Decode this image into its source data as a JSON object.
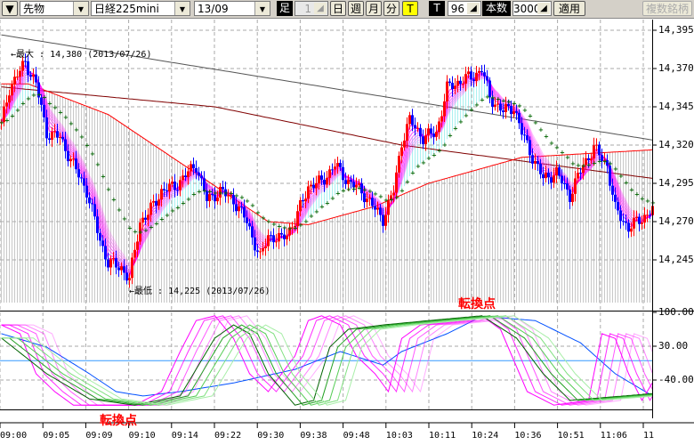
{
  "toolbar": {
    "menu_arrow": "▼",
    "market": "先物",
    "symbol": "日経225mini",
    "contract": "13/09",
    "ashi_label": "足",
    "ashi_value": "1",
    "buttons": [
      "日",
      "週",
      "月",
      "分"
    ],
    "t_toggle": "T",
    "t_label": "T",
    "t_value": "96",
    "count_label": "本数",
    "count_value": "3000",
    "apply": "適用",
    "multi": "複数銘柄"
  },
  "annotations": {
    "max": "←最大 : 14,380 (2013/07/26)",
    "min": "←最低 : 14,225 (2013/07/26)",
    "turn1": "転換点",
    "turn2": "転換点"
  },
  "chart_data": [
    {
      "type": "candlestick",
      "ylim": [
        14225,
        14402
      ],
      "yticks": [
        "14,395",
        "14,370",
        "14,345",
        "14,320",
        "14,295",
        "14,270",
        "14,245"
      ],
      "ytick_values": [
        14395,
        14370,
        14345,
        14320,
        14295,
        14270,
        14245
      ],
      "xticks": [
        "09:00",
        "09:05",
        "09:09",
        "09:10",
        "09:14",
        "09:22",
        "09:30",
        "09:38",
        "09:48",
        "10:03",
        "10:11",
        "10:24",
        "10:36",
        "10:51",
        "11:06",
        "11"
      ],
      "max": 14380,
      "min": 14225,
      "bars": 245,
      "price_path": [
        [
          0,
          14333
        ],
        [
          3,
          14357
        ],
        [
          9,
          14374
        ],
        [
          13,
          14360
        ],
        [
          17,
          14328
        ],
        [
          22,
          14325
        ],
        [
          27,
          14307
        ],
        [
          32,
          14290
        ],
        [
          37,
          14258
        ],
        [
          40,
          14243
        ],
        [
          45,
          14240
        ],
        [
          48,
          14232
        ],
        [
          52,
          14270
        ],
        [
          55,
          14275
        ],
        [
          60,
          14290
        ],
        [
          65,
          14293
        ],
        [
          70,
          14302
        ],
        [
          73,
          14307
        ],
        [
          77,
          14284
        ],
        [
          82,
          14290
        ],
        [
          87,
          14284
        ],
        [
          92,
          14270
        ],
        [
          97,
          14246
        ],
        [
          100,
          14261
        ],
        [
          105,
          14258
        ],
        [
          110,
          14270
        ],
        [
          115,
          14293
        ],
        [
          120,
          14296
        ],
        [
          125,
          14307
        ],
        [
          130,
          14296
        ],
        [
          135,
          14290
        ],
        [
          140,
          14278
        ],
        [
          143,
          14272
        ],
        [
          147,
          14290
        ],
        [
          150,
          14322
        ],
        [
          153,
          14336
        ],
        [
          158,
          14325
        ],
        [
          163,
          14328
        ],
        [
          167,
          14357
        ],
        [
          172,
          14362
        ],
        [
          177,
          14365
        ],
        [
          180,
          14370
        ],
        [
          183,
          14351
        ],
        [
          188,
          14342
        ],
        [
          192,
          14345
        ],
        [
          195,
          14328
        ],
        [
          198,
          14316
        ],
        [
          203,
          14298
        ],
        [
          208,
          14302
        ],
        [
          213,
          14287
        ],
        [
          218,
          14307
        ],
        [
          222,
          14318
        ],
        [
          227,
          14307
        ],
        [
          230,
          14278
        ],
        [
          235,
          14266
        ],
        [
          240,
          14272
        ],
        [
          244,
          14278
        ]
      ],
      "ma_long_gray": [
        [
          0,
          14392
        ],
        [
          245,
          14323
        ]
      ],
      "ma_long_darkred": [
        [
          0,
          14358
        ],
        [
          80,
          14345
        ],
        [
          150,
          14320
        ],
        [
          245,
          14298
        ]
      ],
      "ma_red": [
        [
          10,
          14360
        ],
        [
          40,
          14340
        ],
        [
          70,
          14305
        ],
        [
          100,
          14270
        ],
        [
          115,
          14268
        ],
        [
          140,
          14280
        ],
        [
          160,
          14295
        ],
        [
          195,
          14312
        ],
        [
          245,
          14317
        ]
      ],
      "colors": {
        "up": "#ff0000",
        "down": "#0000ff",
        "ribbon": "#ff00ff",
        "ma_green": "#006400"
      }
    },
    {
      "type": "line",
      "ylim": [
        -100,
        100
      ],
      "yticks": [
        "100.00",
        "30.00",
        "-40.00"
      ],
      "ytick_values": [
        100,
        30,
        -40
      ],
      "hline": 0,
      "series": [
        {
          "color": "#0050ff",
          "points": [
            [
              0,
              56
            ],
            [
              17,
              28
            ],
            [
              33,
              -27
            ],
            [
              43,
              -64
            ],
            [
              53,
              -73
            ],
            [
              67,
              -64
            ],
            [
              87,
              -46
            ],
            [
              110,
              -18
            ],
            [
              127,
              19
            ],
            [
              143,
              -9
            ],
            [
              150,
              19
            ],
            [
              167,
              56
            ],
            [
              180,
              92
            ],
            [
              200,
              83
            ],
            [
              217,
              37
            ],
            [
              230,
              -27
            ],
            [
              244,
              -73
            ]
          ]
        },
        {
          "color": "#ff00ff",
          "points": [
            [
              0,
              74
            ],
            [
              7,
              56
            ],
            [
              13,
              -27
            ],
            [
              20,
              -64
            ],
            [
              27,
              -92
            ],
            [
              50,
              -92
            ],
            [
              60,
              -64
            ],
            [
              67,
              19
            ],
            [
              73,
              83
            ],
            [
              80,
              93
            ],
            [
              87,
              46
            ],
            [
              93,
              -27
            ],
            [
              100,
              -64
            ],
            [
              110,
              10
            ],
            [
              115,
              83
            ],
            [
              120,
              93
            ],
            [
              127,
              74
            ],
            [
              133,
              10
            ],
            [
              140,
              -27
            ],
            [
              145,
              -64
            ],
            [
              150,
              46
            ],
            [
              157,
              74
            ],
            [
              173,
              83
            ],
            [
              180,
              93
            ],
            [
              187,
              65
            ],
            [
              197,
              -64
            ],
            [
              207,
              -92
            ],
            [
              220,
              -82
            ],
            [
              225,
              56
            ],
            [
              230,
              46
            ],
            [
              235,
              -27
            ],
            [
              240,
              -82
            ],
            [
              244,
              -45
            ]
          ]
        },
        {
          "color": "#008000",
          "points": [
            [
              0,
              47
            ],
            [
              17,
              -27
            ],
            [
              33,
              -79
            ],
            [
              50,
              -92
            ],
            [
              67,
              -73
            ],
            [
              80,
              47
            ],
            [
              87,
              74
            ],
            [
              93,
              56
            ],
            [
              100,
              -27
            ],
            [
              110,
              -92
            ],
            [
              117,
              -82
            ],
            [
              123,
              28
            ],
            [
              130,
              65
            ],
            [
              143,
              74
            ],
            [
              160,
              83
            ],
            [
              180,
              93
            ],
            [
              193,
              47
            ],
            [
              203,
              -27
            ],
            [
              213,
              -82
            ],
            [
              233,
              -73
            ],
            [
              244,
              -68
            ]
          ]
        }
      ]
    }
  ]
}
